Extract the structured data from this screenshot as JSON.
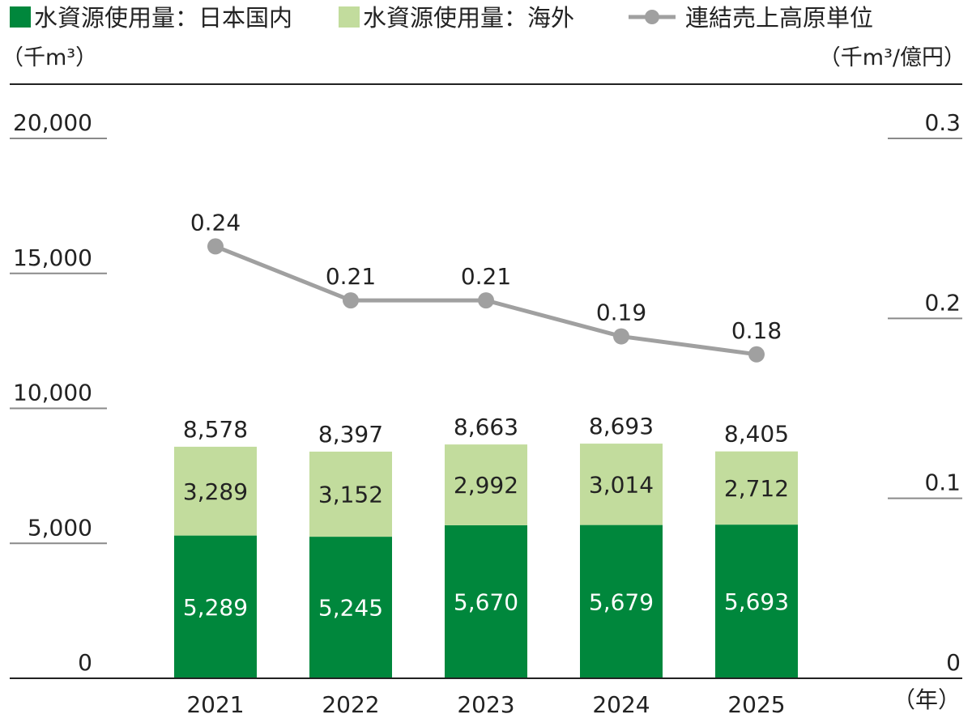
{
  "chart_data": {
    "type": "bar",
    "categories": [
      "2021",
      "2022",
      "2023",
      "2024",
      "2025"
    ],
    "series": [
      {
        "name": "水資源使用量：日本国内",
        "type": "bar",
        "stack": "water",
        "color": "#00873c",
        "values": [
          5289,
          5245,
          5670,
          5679,
          5693
        ]
      },
      {
        "name": "水資源使用量：海外",
        "type": "bar",
        "stack": "water",
        "color": "#c2dc9d",
        "values": [
          3289,
          3152,
          2992,
          3014,
          2712
        ]
      },
      {
        "name": "連結売上高原単位",
        "type": "line",
        "axis": "right",
        "color": "#a0a0a0",
        "values": [
          0.24,
          0.21,
          0.21,
          0.19,
          0.18
        ]
      }
    ],
    "totals": [
      8578,
      8397,
      8663,
      8693,
      8405
    ],
    "value_labels": {
      "domestic": [
        "5,289",
        "5,245",
        "5,670",
        "5,679",
        "5,693"
      ],
      "overseas": [
        "3,289",
        "3,152",
        "2,992",
        "3,014",
        "2,712"
      ],
      "totals": [
        "8,578",
        "8,397",
        "8,663",
        "8,693",
        "8,405"
      ],
      "intensity": [
        "0.24",
        "0.21",
        "0.21",
        "0.19",
        "0.18"
      ]
    },
    "ylabel": "（千m³）",
    "y2label": "（千m³/億円）",
    "xlabel": "（年）",
    "ylim": [
      0,
      20000
    ],
    "y2lim": [
      0,
      0.3
    ],
    "y_ticks": [
      0,
      5000,
      10000,
      15000,
      20000
    ],
    "y_tick_labels": [
      "0",
      "5,000",
      "10,000",
      "15,000",
      "20,000"
    ],
    "y2_ticks": [
      0,
      0.1,
      0.2,
      0.3
    ],
    "y2_tick_labels": [
      "0",
      "0.1",
      "0.2",
      "0.3"
    ],
    "legend_position": "top",
    "grid": false
  }
}
